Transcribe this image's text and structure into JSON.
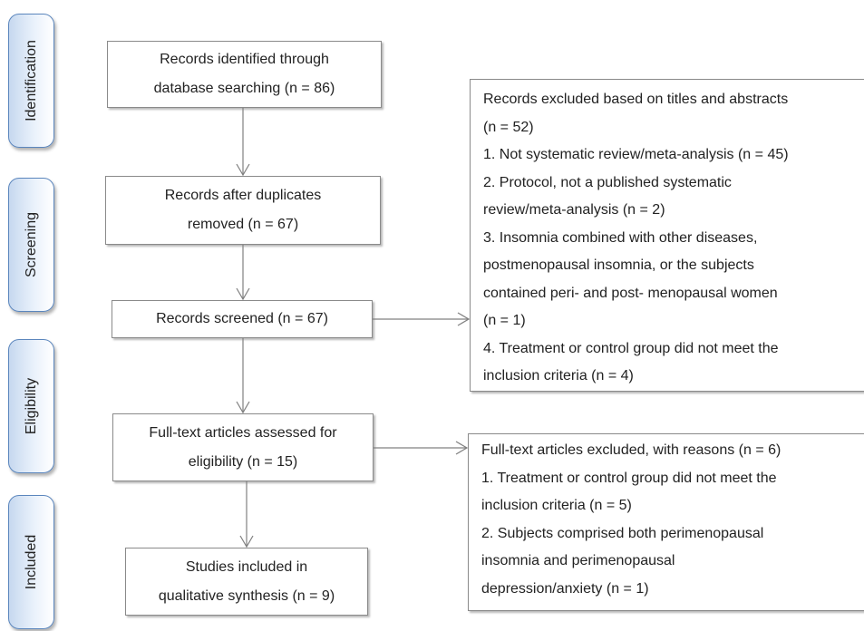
{
  "phases": [
    "Identification",
    "Screening",
    "Eligibility",
    "Included"
  ],
  "boxes": {
    "identified": [
      "Records identified through",
      "database searching (n = 86)"
    ],
    "duplicates": [
      "Records after duplicates",
      "removed (n = 67)"
    ],
    "screened": [
      "Records screened (n = 67)"
    ],
    "fulltext": [
      "Full-text articles assessed for",
      "eligibility (n = 15)"
    ],
    "included": [
      "Studies included in",
      "qualitative synthesis (n = 9)"
    ]
  },
  "exclusions": {
    "titles_abstracts": [
      "Records excluded based on titles and abstracts",
      "(n = 52)",
      "1. Not systematic review/meta-analysis (n = 45)",
      "2. Protocol, not a published systematic",
      "review/meta-analysis (n = 2)",
      "3. Insomnia combined with other diseases,",
      "postmenopausal insomnia, or the subjects",
      "contained peri- and post- menopausal women",
      "(n = 1)",
      "4. Treatment or control group did not meet the",
      "inclusion criteria (n = 4)"
    ],
    "fulltext": [
      "Full-text articles excluded, with reasons (n = 6)",
      "1. Treatment or control group did not meet the",
      "inclusion criteria (n = 5)",
      "2. Subjects comprised both perimenopausal",
      "insomnia and perimenopausal",
      "depression/anxiety (n = 1)"
    ]
  },
  "colors": {
    "phase_border": "#5b86bd",
    "phase_fill": "#c6d8ef",
    "box_border": "#8a8a8a",
    "arrow": "#808080"
  }
}
